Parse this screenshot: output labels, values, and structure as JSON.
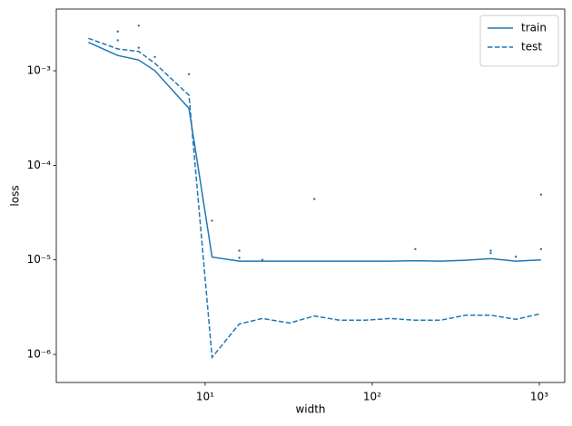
{
  "chart_data": {
    "type": "line",
    "xlabel": "width",
    "ylabel": "loss",
    "xscale": "log",
    "yscale": "log",
    "x": [
      2,
      3,
      4,
      5,
      8,
      11,
      16,
      22,
      32,
      45,
      64,
      90,
      128,
      181,
      256,
      362,
      512,
      724,
      1024
    ],
    "series": [
      {
        "name": "train",
        "color": "#1f77b4",
        "linestyle": "solid",
        "values": [
          0.002,
          0.00145,
          0.0013,
          0.001,
          0.0004,
          1.07e-05,
          9.7e-06,
          9.7e-06,
          9.7e-06,
          9.7e-06,
          9.7e-06,
          9.7e-06,
          9.7e-06,
          9.8e-06,
          9.7e-06,
          9.9e-06,
          1.03e-05,
          9.7e-06,
          1e-05
        ]
      },
      {
        "name": "test",
        "color": "#1f77b4",
        "linestyle": "dashed",
        "values": [
          0.0022,
          0.0017,
          0.0016,
          0.0012,
          0.00055,
          9.3e-07,
          2.1e-06,
          2.4e-06,
          2.15e-06,
          2.55e-06,
          2.3e-06,
          2.3e-06,
          2.4e-06,
          2.3e-06,
          2.3e-06,
          2.6e-06,
          2.6e-06,
          2.35e-06,
          2.7e-06
        ]
      }
    ],
    "points": {
      "color": "#1f77b4",
      "x": [
        3,
        3,
        4,
        4,
        5,
        8,
        11,
        16,
        16,
        22,
        45,
        181,
        512,
        512,
        724,
        1024,
        1024
      ],
      "y": [
        0.0026,
        0.0021,
        0.003,
        0.00175,
        0.0014,
        0.00092,
        2.6e-05,
        1.25e-05,
        1.05e-05,
        1e-05,
        4.4e-05,
        1.3e-05,
        1.25e-05,
        1.18e-05,
        1.08e-05,
        4.9e-05,
        1.3e-05
      ]
    },
    "xlim": [
      1.285,
      1420
    ],
    "ylim": [
      5.05e-07,
      0.00449
    ],
    "xticks": [
      {
        "value": 10,
        "label": "10¹"
      },
      {
        "value": 100,
        "label": "10²"
      },
      {
        "value": 1000,
        "label": "10³"
      }
    ],
    "yticks": [
      {
        "value": 1e-06,
        "label": "10⁻⁶"
      },
      {
        "value": 1e-05,
        "label": "10⁻⁵"
      },
      {
        "value": 0.0001,
        "label": "10⁻⁴"
      },
      {
        "value": 0.001,
        "label": "10⁻³"
      }
    ],
    "legend": "upper right"
  }
}
